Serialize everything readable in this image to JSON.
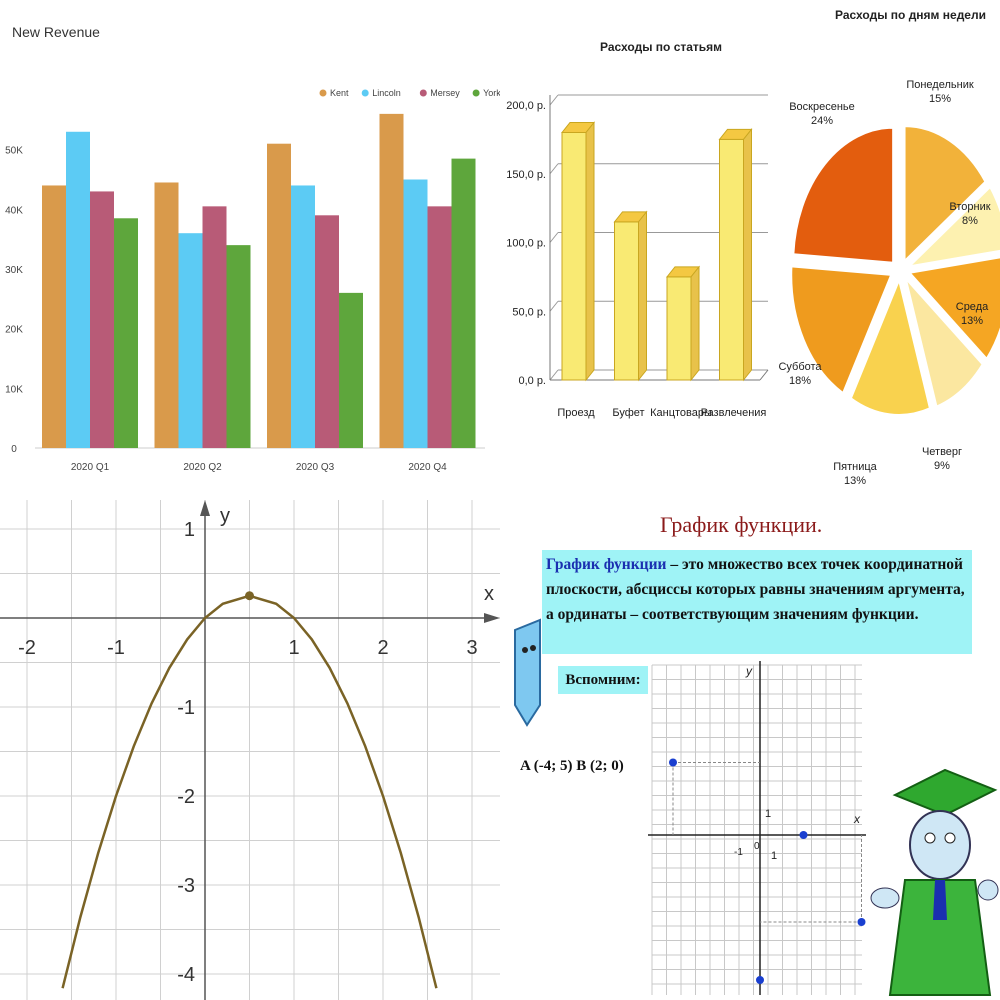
{
  "chart_data": [
    {
      "type": "bar",
      "title": "New Revenue",
      "categories": [
        "2020 Q1",
        "2020 Q2",
        "2020 Q3",
        "2020 Q4"
      ],
      "series": [
        {
          "name": "Kent",
          "color": "#d99a4b",
          "values": [
            44000,
            44500,
            51000,
            56000
          ]
        },
        {
          "name": "Lincoln",
          "color": "#5ccbf4",
          "values": [
            53000,
            36000,
            44000,
            45000
          ]
        },
        {
          "name": "Mersey",
          "color": "#b85b77",
          "values": [
            43000,
            40500,
            39000,
            40500
          ]
        },
        {
          "name": "York",
          "color": "#5ea63c",
          "values": [
            38500,
            34000,
            26000,
            48500
          ]
        }
      ],
      "yticks": [
        "0",
        "10K",
        "20K",
        "30K",
        "40K",
        "50K"
      ],
      "ylim": [
        0,
        60000
      ],
      "legend": "top-right",
      "grid": false
    },
    {
      "type": "bar",
      "title": "Расходы по статьям",
      "categories": [
        "Проезд",
        "Буфет",
        "Канцтовары",
        "Развлечения"
      ],
      "values": [
        180,
        115,
        75,
        175
      ],
      "yticks": [
        "0,0 р.",
        "50,0 р.",
        "100,0 р.",
        "150,0 р.",
        "200,0 р."
      ],
      "ylim": [
        0,
        200
      ],
      "color": "#f6e66b",
      "grid": true
    },
    {
      "type": "pie",
      "title": "Расходы по дням недели",
      "slices": [
        {
          "label": "Понедельник",
          "pct": "15%",
          "value": 15,
          "color": "#f2b23a"
        },
        {
          "label": "Вторник",
          "pct": "8%",
          "value": 8,
          "color": "#fdf1b0"
        },
        {
          "label": "Среда",
          "pct": "13%",
          "value": 13,
          "color": "#f5a623"
        },
        {
          "label": "Четверг",
          "pct": "9%",
          "value": 9,
          "color": "#fbe7a0"
        },
        {
          "label": "Пятница",
          "pct": "13%",
          "value": 13,
          "color": "#f9d24e"
        },
        {
          "label": "Суббота",
          "pct": "18%",
          "value": 18,
          "color": "#ef9b1e"
        },
        {
          "label": "Воскресенье",
          "pct": "24%",
          "value": 24,
          "color": "#e35d0e"
        }
      ]
    },
    {
      "type": "line",
      "x_axis_label": "x",
      "y_axis_label": "y",
      "xticks": [
        "-2",
        "-1",
        "1",
        "2",
        "3"
      ],
      "yticks": [
        "1",
        "-1",
        "-2",
        "-3",
        "-4"
      ],
      "xlim": [
        -2.3,
        3.3
      ],
      "ylim": [
        -4.3,
        1.3
      ],
      "grid": true,
      "series": [
        {
          "color": "#7a6326",
          "x": [
            -1.6,
            -1.4,
            -1.2,
            -1.0,
            -0.8,
            -0.6,
            -0.4,
            -0.2,
            0.0,
            0.2,
            0.5,
            0.8,
            1.0,
            1.2,
            1.4,
            1.6,
            1.8,
            2.0,
            2.2,
            2.4,
            2.6
          ],
          "y": [
            -4.16,
            -3.36,
            -2.64,
            -2.0,
            -1.44,
            -0.96,
            -0.56,
            -0.24,
            0.0,
            0.16,
            0.25,
            0.16,
            0.0,
            -0.24,
            -0.56,
            -0.96,
            -1.44,
            -2.0,
            -2.64,
            -3.36,
            -4.16
          ]
        }
      ],
      "points": [
        {
          "x": 0.5,
          "y": 0.25
        }
      ]
    }
  ],
  "function_slide": {
    "title": "График функции.",
    "definition_term": "График функции",
    "definition_rest": " – это множество всех точек координатной плоскости, абсциссы которых равны значениям аргумента, а ординаты – соответствующим значениям функции.",
    "remember": "Вспомним:",
    "points_text": "A (-4; 5) B (2; 0)",
    "mini_axis": {
      "x_label": "x",
      "y_label": "y",
      "one_label": "1",
      "origin_label": "0",
      "neg_one_label": "-1"
    },
    "mini_points": [
      {
        "x": -6,
        "y": 5
      },
      {
        "x": 3,
        "y": 0
      },
      {
        "x": 7,
        "y": -6
      },
      {
        "x": 0,
        "y": -10
      }
    ]
  }
}
